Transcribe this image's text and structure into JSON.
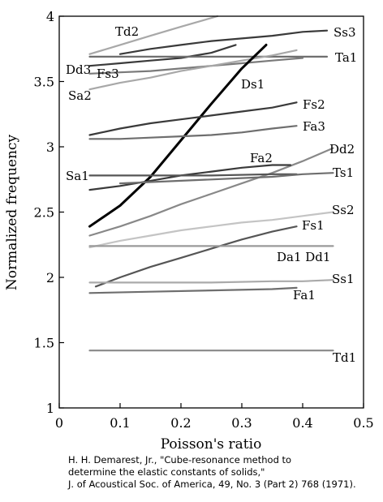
{
  "chart_data": {
    "type": "line",
    "title": "",
    "xlabel": "Poisson's ratio",
    "ylabel": "Normalized frequency",
    "xlim": [
      0,
      0.5
    ],
    "ylim": [
      1,
      4
    ],
    "xticks": [
      0,
      0.1,
      0.2,
      0.3,
      0.4,
      0.5
    ],
    "xtick_labels": [
      "0",
      "0.1",
      "0.2",
      "0.3",
      "0.4",
      "0.5"
    ],
    "yticks": [
      1,
      1.5,
      2,
      2.5,
      3,
      3.5,
      4
    ],
    "ytick_labels": [
      "1",
      "1.5",
      "2",
      "2.5",
      "3",
      "3.5",
      "4"
    ],
    "grid": false,
    "legend": "none",
    "series": [
      {
        "name": "Td2",
        "color": "#a8a8a8",
        "x": [
          0.05,
          0.1,
          0.15,
          0.2,
          0.26
        ],
        "y": [
          3.71,
          3.78,
          3.85,
          3.92,
          4.0
        ]
      },
      {
        "name": "Ss3",
        "color": "#3a3a3a",
        "x": [
          0.1,
          0.15,
          0.2,
          0.25,
          0.3,
          0.35,
          0.4,
          0.44
        ],
        "y": [
          3.71,
          3.75,
          3.78,
          3.81,
          3.83,
          3.85,
          3.88,
          3.89
        ]
      },
      {
        "name": "Dd3",
        "color": "#3a3a3a",
        "x": [
          0.05,
          0.1,
          0.15,
          0.2,
          0.25,
          0.29
        ],
        "y": [
          3.62,
          3.64,
          3.66,
          3.68,
          3.72,
          3.78
        ]
      },
      {
        "name": "Ta1",
        "color": "#6e6e6e",
        "x": [
          0.05,
          0.15,
          0.25,
          0.35,
          0.44
        ],
        "y": [
          3.69,
          3.69,
          3.69,
          3.69,
          3.69
        ]
      },
      {
        "name": "Fs3",
        "color": "#7a7a7a",
        "x": [
          0.05,
          0.1,
          0.15,
          0.2,
          0.25,
          0.3,
          0.35,
          0.4
        ],
        "y": [
          3.56,
          3.57,
          3.58,
          3.6,
          3.62,
          3.64,
          3.66,
          3.68
        ]
      },
      {
        "name": "Sa2",
        "color": "#a8a8a8",
        "x": [
          0.05,
          0.1,
          0.15,
          0.2,
          0.25,
          0.3,
          0.35,
          0.39
        ],
        "y": [
          3.44,
          3.49,
          3.53,
          3.58,
          3.62,
          3.66,
          3.7,
          3.74
        ]
      },
      {
        "name": "Ds1",
        "color": "#000000",
        "x": [
          0.05,
          0.1,
          0.15,
          0.2,
          0.25,
          0.3,
          0.34
        ],
        "y": [
          2.39,
          2.55,
          2.77,
          3.05,
          3.33,
          3.6,
          3.78
        ]
      },
      {
        "name": "Fs2",
        "color": "#3a3a3a",
        "x": [
          0.05,
          0.1,
          0.15,
          0.2,
          0.25,
          0.3,
          0.35,
          0.39
        ],
        "y": [
          3.09,
          3.14,
          3.18,
          3.21,
          3.24,
          3.27,
          3.3,
          3.34
        ]
      },
      {
        "name": "Fa3",
        "color": "#6e6e6e",
        "x": [
          0.05,
          0.1,
          0.15,
          0.2,
          0.25,
          0.3,
          0.35,
          0.39
        ],
        "y": [
          3.06,
          3.06,
          3.07,
          3.08,
          3.09,
          3.11,
          3.14,
          3.16
        ]
      },
      {
        "name": "Dd2",
        "color": "#888888",
        "x": [
          0.05,
          0.1,
          0.15,
          0.2,
          0.25,
          0.3,
          0.35,
          0.4,
          0.45
        ],
        "y": [
          2.32,
          2.39,
          2.47,
          2.56,
          2.64,
          2.72,
          2.8,
          2.89,
          2.99
        ]
      },
      {
        "name": "Fa2",
        "color": "#3a3a3a",
        "x": [
          0.05,
          0.1,
          0.15,
          0.2,
          0.25,
          0.3,
          0.35,
          0.38
        ],
        "y": [
          2.67,
          2.7,
          2.74,
          2.78,
          2.81,
          2.84,
          2.86,
          2.86
        ]
      },
      {
        "name": "Sa1",
        "color": "#555555",
        "x": [
          0.05,
          0.15,
          0.25,
          0.35,
          0.39
        ],
        "y": [
          2.78,
          2.78,
          2.78,
          2.79,
          2.79
        ]
      },
      {
        "name": "Ts1",
        "color": "#6e6e6e",
        "x": [
          0.1,
          0.15,
          0.2,
          0.25,
          0.3,
          0.35,
          0.4,
          0.45
        ],
        "y": [
          2.72,
          2.73,
          2.74,
          2.75,
          2.76,
          2.77,
          2.79,
          2.8
        ]
      },
      {
        "name": "Ss2",
        "color": "#c4c4c4",
        "x": [
          0.05,
          0.1,
          0.15,
          0.2,
          0.25,
          0.3,
          0.35,
          0.4,
          0.45
        ],
        "y": [
          2.23,
          2.28,
          2.32,
          2.36,
          2.39,
          2.42,
          2.44,
          2.47,
          2.5
        ]
      },
      {
        "name": "Fs1",
        "color": "#555555",
        "x": [
          0.06,
          0.1,
          0.15,
          0.2,
          0.25,
          0.3,
          0.35,
          0.39
        ],
        "y": [
          1.93,
          2.0,
          2.08,
          2.15,
          2.22,
          2.29,
          2.35,
          2.39
        ]
      },
      {
        "name": "Da1 Dd1",
        "color": "#9a9a9a",
        "x": [
          0.05,
          0.15,
          0.25,
          0.35,
          0.45
        ],
        "y": [
          2.24,
          2.24,
          2.24,
          2.24,
          2.24
        ]
      },
      {
        "name": "Ss1",
        "color": "#aaaaaa",
        "x": [
          0.05,
          0.15,
          0.25,
          0.35,
          0.4,
          0.45
        ],
        "y": [
          1.96,
          1.96,
          1.96,
          1.97,
          1.97,
          1.98
        ]
      },
      {
        "name": "Fa1",
        "color": "#6e6e6e",
        "x": [
          0.05,
          0.15,
          0.25,
          0.35,
          0.39
        ],
        "y": [
          1.88,
          1.89,
          1.9,
          1.91,
          1.92
        ]
      },
      {
        "name": "Td1",
        "color": "#888888",
        "x": [
          0.05,
          0.15,
          0.25,
          0.35,
          0.45
        ],
        "y": [
          1.44,
          1.44,
          1.44,
          1.44,
          1.44
        ]
      }
    ]
  },
  "citation": {
    "line1": "H. H. Demarest, Jr., \"Cube-resonance method to",
    "line2": "determine the elastic constants of solids,\"",
    "line3": "J. of Acoustical Soc. of America, 49, No. 3 (Part 2) 768 (1971)."
  }
}
